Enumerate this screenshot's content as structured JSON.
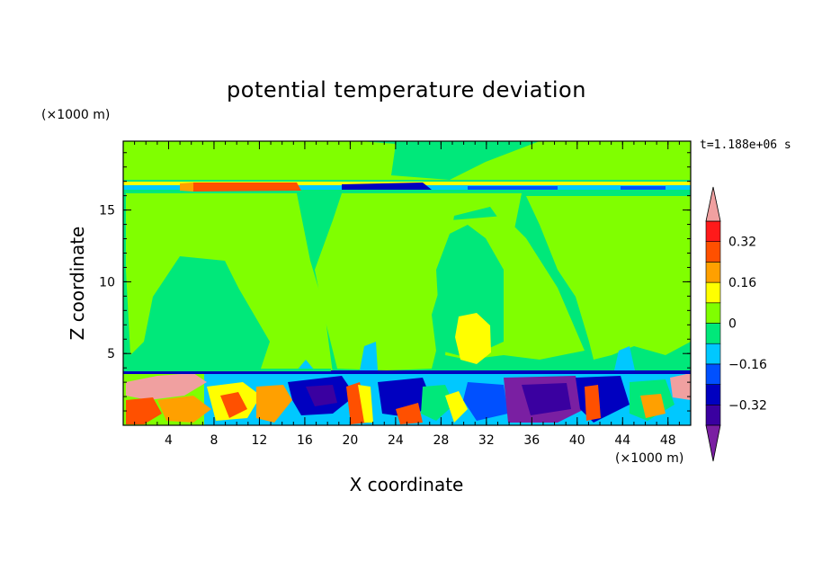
{
  "chart_data": {
    "type": "heatmap",
    "title": "potential temperature deviation",
    "xlabel": "X coordinate",
    "ylabel": "Z coordinate",
    "x_unit": "(×1000 m)",
    "y_unit": "(×1000 m)",
    "time_label": "t=1.188e+06 s",
    "xlim": [
      0,
      50
    ],
    "ylim": [
      0,
      19.8
    ],
    "x_ticks": [
      4,
      8,
      12,
      16,
      20,
      24,
      28,
      32,
      36,
      40,
      44,
      48
    ],
    "y_ticks": [
      5,
      10,
      15
    ],
    "colorbar": {
      "levels": [
        -0.4,
        -0.32,
        -0.24,
        -0.16,
        -0.08,
        0,
        0.08,
        0.16,
        0.24,
        0.32,
        0.4
      ],
      "tick_labels": [
        {
          "level": 0.32,
          "label": "0.32"
        },
        {
          "level": 0.16,
          "label": "0.16"
        },
        {
          "level": 0,
          "label": "0"
        },
        {
          "level": -0.16,
          "label": "−0.16"
        },
        {
          "level": -0.32,
          "label": "−0.32"
        }
      ],
      "colors": [
        "#7a1fa2",
        "#3a00a0",
        "#0000c0",
        "#0050ff",
        "#00c8ff",
        "#00e87a",
        "#80ff00",
        "#ffff00",
        "#ffa000",
        "#ff5000",
        "#ff1a1a",
        "#f0a0a0"
      ],
      "over_color": "#f0a0a0",
      "under_color": "#7a1fa2"
    }
  }
}
